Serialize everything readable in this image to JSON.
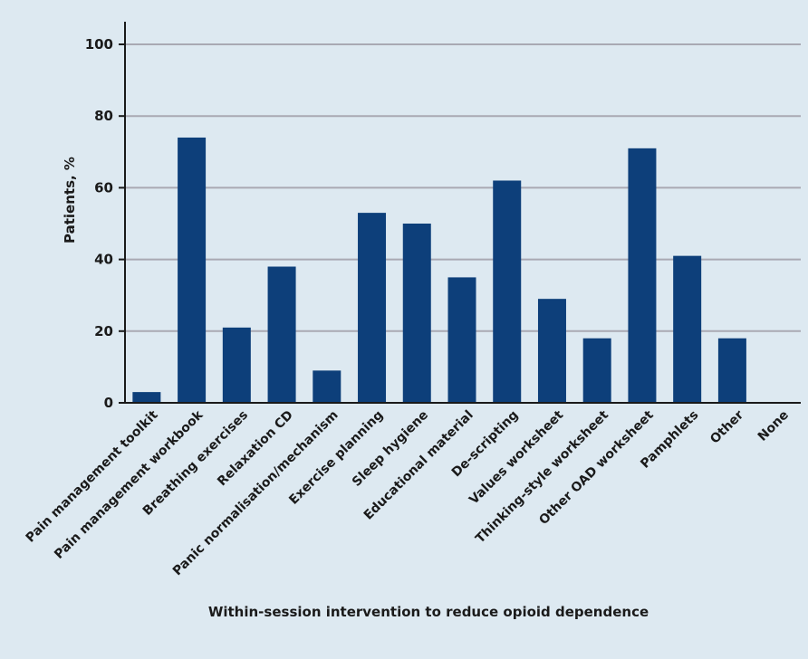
{
  "colors": {
    "background": "#dde9f1",
    "bar": "#0d3f7a",
    "grid": "#a9a9b3",
    "axis": "#1a1a1a"
  },
  "chart_data": {
    "type": "bar",
    "title": "",
    "xlabel": "Within-session intervention to reduce opioid dependence",
    "ylabel": "Patients, %",
    "ylim": [
      0,
      100
    ],
    "yticks": [
      0,
      20,
      40,
      60,
      80,
      100
    ],
    "grid": true,
    "categories": [
      "Pain management toolkit",
      "Pain management workbook",
      "Breathing exercises",
      "Relaxation CD",
      "Panic normalisation/mechanism",
      "Exercise planning",
      "Sleep hygiene",
      "Educational material",
      "De-scripting",
      "Values worksheet",
      "Thinking-style worksheet",
      "Other OAD worksheet",
      "Pamphlets",
      "Other",
      "None"
    ],
    "values": [
      3,
      74,
      21,
      38,
      9,
      53,
      50,
      35,
      62,
      29,
      18,
      71,
      41,
      18,
      0
    ]
  }
}
